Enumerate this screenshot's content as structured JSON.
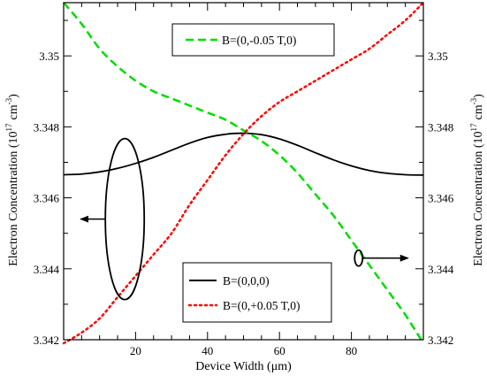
{
  "chart_data": {
    "type": "line",
    "xlabel": "Device Width (μm)",
    "ylabel_left": {
      "text": "Electron Concentration (10",
      "sup": "17",
      "unit": "cm",
      "unit_sup": "-3",
      "close": ")"
    },
    "ylabel_right": {
      "text": "Electron Concentration (10",
      "sup": "17",
      "unit": "cm",
      "unit_sup": "-3",
      "close": ")"
    },
    "xlim": [
      0,
      100
    ],
    "ylim_left": [
      3.342,
      3.3515
    ],
    "ylim_right": [
      3.342,
      3.3515
    ],
    "x_ticks": [
      20,
      40,
      60,
      80
    ],
    "x_tick_labels": [
      "20",
      "40",
      "60",
      "80"
    ],
    "y_ticks_left": [
      3.342,
      3.344,
      3.346,
      3.348,
      3.35
    ],
    "y_tick_labels_left": [
      "3.342",
      "3.344",
      "3.346",
      "3.348",
      "3.35"
    ],
    "y_ticks_right": [
      3.342,
      3.344,
      3.346,
      3.348,
      3.35
    ],
    "y_tick_labels_right": [
      "3.342",
      "3.344",
      "3.346",
      "3.348",
      "3.35"
    ],
    "grid": false,
    "series": [
      {
        "name": "B=(0,0,0)",
        "axis": "left",
        "color": "#000000",
        "style": "solid",
        "x": [
          0,
          5,
          10,
          15,
          20,
          25,
          30,
          35,
          40,
          45,
          50,
          55,
          60,
          65,
          70,
          75,
          80,
          85,
          90,
          95,
          100
        ],
        "values": [
          3.34665,
          3.34667,
          3.34673,
          3.34683,
          3.34697,
          3.34714,
          3.34734,
          3.34754,
          3.3477,
          3.34779,
          3.34782,
          3.34778,
          3.34766,
          3.34748,
          3.34727,
          3.34707,
          3.3469,
          3.34677,
          3.34669,
          3.34665,
          3.34664
        ]
      },
      {
        "name": "B=(0,-0.05 T,0)",
        "axis": "right",
        "color": "#00dd00",
        "style": "dashed",
        "x": [
          0,
          5,
          10,
          15,
          20,
          25,
          30,
          35,
          40,
          45,
          50,
          55,
          60,
          65,
          70,
          75,
          80,
          85,
          90,
          95,
          100
        ],
        "values": [
          3.3515,
          3.3509,
          3.3502,
          3.3497,
          3.3493,
          3.349,
          3.3488,
          3.3486,
          3.3484,
          3.3482,
          3.3479,
          3.3476,
          3.3472,
          3.3467,
          3.3461,
          3.3455,
          3.3448,
          3.3441,
          3.3434,
          3.3427,
          3.3419
        ]
      },
      {
        "name": "B=(0,+0.05 T,0)",
        "axis": "left",
        "color": "#ff0000",
        "style": "dotted",
        "x": [
          0,
          5,
          10,
          15,
          20,
          25,
          30,
          35,
          40,
          45,
          50,
          55,
          60,
          65,
          70,
          75,
          80,
          85,
          90,
          95,
          100
        ],
        "values": [
          3.3419,
          3.3422,
          3.3426,
          3.3432,
          3.3438,
          3.3444,
          3.345,
          3.3458,
          3.3465,
          3.3472,
          3.3478,
          3.3483,
          3.3487,
          3.349,
          3.3493,
          3.3496,
          3.3499,
          3.3502,
          3.3506,
          3.351,
          3.3515
        ]
      }
    ],
    "legends": [
      {
        "placement": "top-center",
        "entries": [
          "B=(0,-0.05 T,0)"
        ]
      },
      {
        "placement": "bottom-right",
        "entries": [
          "B=(0,0,0)",
          "B=(0,+0.05 T,0)"
        ]
      }
    ],
    "annotations": [
      {
        "kind": "ellipse-arrow",
        "target_axis": "left",
        "x": 17,
        "y": 3.3454,
        "arrow": "left"
      },
      {
        "kind": "ellipse-arrow",
        "target_axis": "right",
        "x": 82,
        "y": 3.3443,
        "arrow": "right"
      }
    ]
  }
}
